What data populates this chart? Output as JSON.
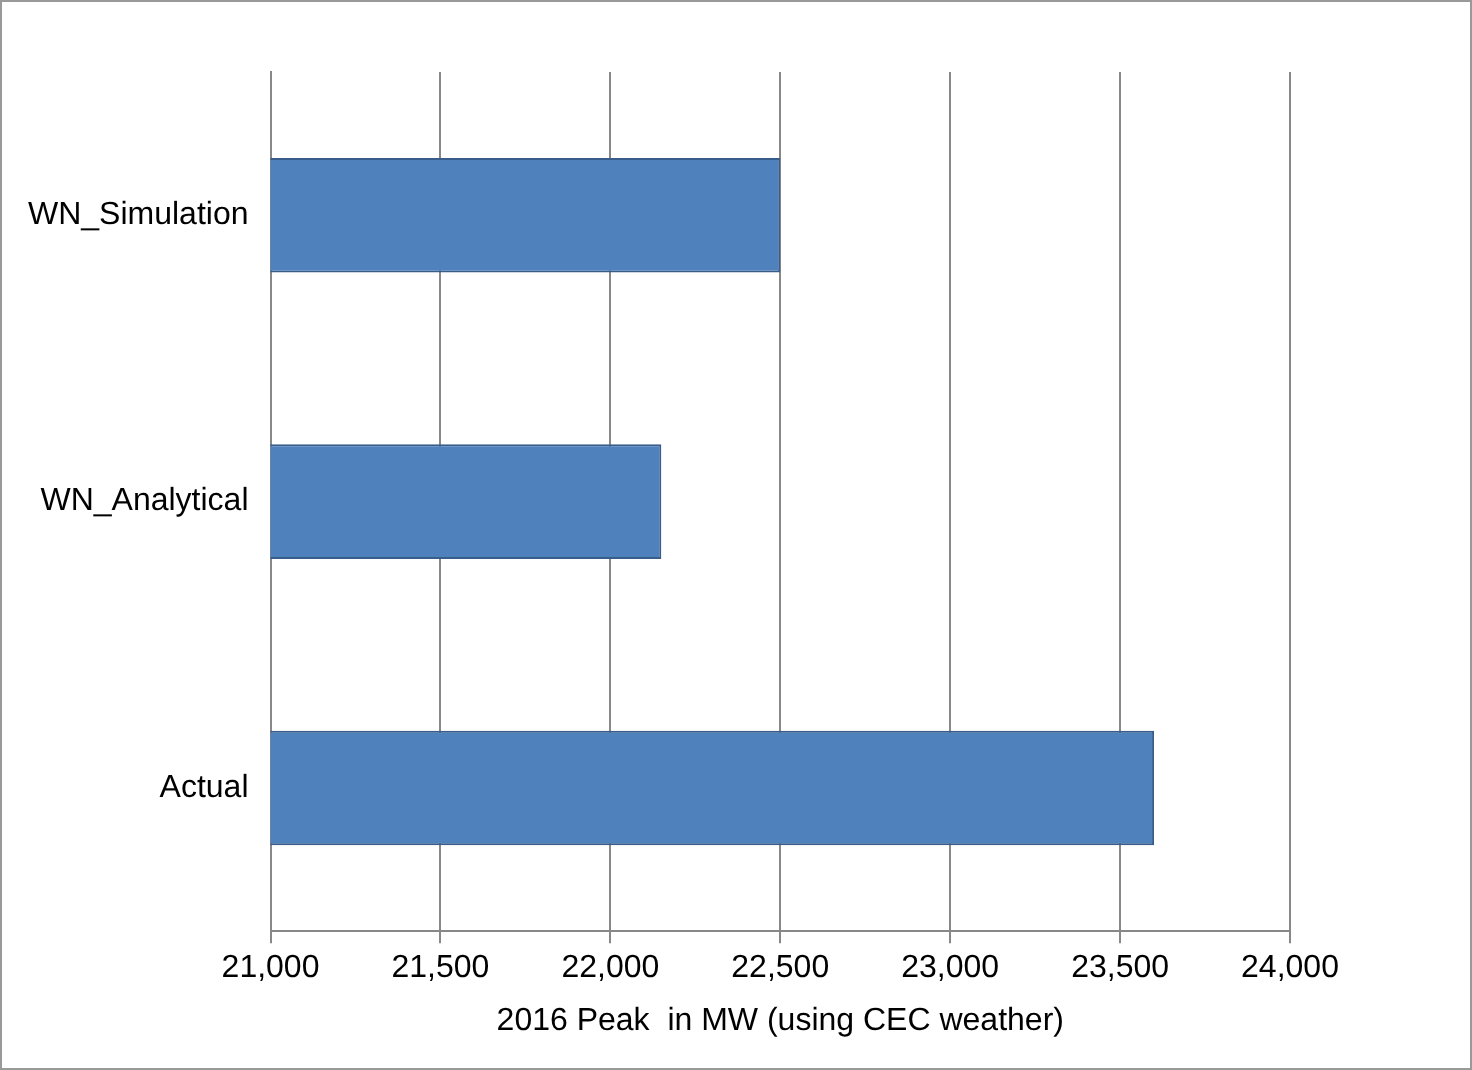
{
  "chart_data": {
    "type": "bar",
    "orientation": "horizontal",
    "categories": [
      "WN_Simulation",
      "WN_Analytical",
      "Actual"
    ],
    "values": [
      22500,
      22150,
      23600
    ],
    "color": "#4f81bd",
    "xlim": [
      21000,
      24000
    ],
    "xticks": [
      {
        "value": 21000,
        "label": "21,000"
      },
      {
        "value": 21500,
        "label": "21,500"
      },
      {
        "value": 22000,
        "label": "22,000"
      },
      {
        "value": 22500,
        "label": "22,500"
      },
      {
        "value": 23000,
        "label": "23,000"
      },
      {
        "value": 23500,
        "label": "23,500"
      },
      {
        "value": 24000,
        "label": "24,000"
      }
    ],
    "xlabel": "2016 Peak  in MW (using CEC weather)",
    "grid": "x",
    "legend": false
  }
}
